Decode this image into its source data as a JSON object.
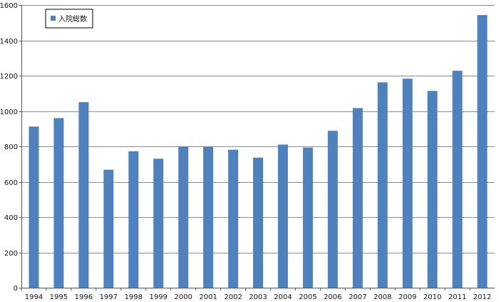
{
  "chart_data": {
    "type": "bar",
    "categories": [
      "1994",
      "1995",
      "1996",
      "1997",
      "1998",
      "1999",
      "2000",
      "2001",
      "2002",
      "2003",
      "2004",
      "2005",
      "2006",
      "2007",
      "2008",
      "2009",
      "2010",
      "2011",
      "2012"
    ],
    "series": [
      {
        "name": "入院総数",
        "values": [
          912,
          960,
          1050,
          668,
          772,
          730,
          800,
          797,
          781,
          736,
          810,
          793,
          888,
          1017,
          1162,
          1183,
          1114,
          1228,
          1543
        ]
      }
    ],
    "ylim": [
      0,
      1600
    ],
    "yticks": [
      0,
      200,
      400,
      600,
      800,
      1000,
      1200,
      1400,
      1600
    ],
    "grid": true,
    "legend_position": "top-left",
    "colors": {
      "bar": "#4f81bd",
      "grid": "#8c8c8c",
      "axis": "#555555"
    }
  }
}
